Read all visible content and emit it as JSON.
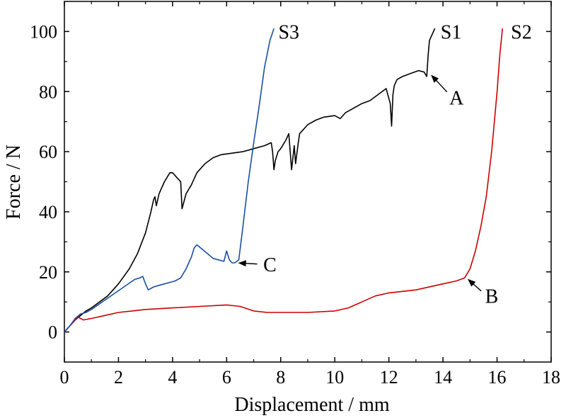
{
  "chart_data": {
    "type": "line",
    "xlabel": "Displacement / mm",
    "ylabel": "Force / N",
    "xlim": [
      0,
      18
    ],
    "ylim": [
      -10,
      110
    ],
    "xticks": [
      0,
      2,
      4,
      6,
      8,
      10,
      12,
      14,
      16,
      18
    ],
    "yticks": [
      0,
      20,
      40,
      60,
      80,
      100
    ],
    "grid": false,
    "series": [
      {
        "name": "S1",
        "color": "#000000",
        "x": [
          0,
          0.2,
          0.4,
          0.6,
          0.8,
          1.0,
          1.3,
          1.6,
          2.0,
          2.4,
          2.7,
          3.0,
          3.2,
          3.3,
          3.35,
          3.4,
          3.5,
          3.7,
          3.9,
          4.0,
          4.2,
          4.3,
          4.35,
          4.5,
          4.7,
          4.9,
          5.2,
          5.5,
          5.8,
          6.2,
          6.6,
          7.0,
          7.4,
          7.65,
          7.7,
          7.75,
          7.8,
          7.9,
          8.0,
          8.2,
          8.3,
          8.4,
          8.45,
          8.5,
          8.55,
          8.65,
          8.7,
          8.8,
          9.0,
          9.3,
          9.6,
          10.0,
          10.2,
          10.4,
          10.6,
          11.0,
          11.3,
          11.6,
          11.9,
          12.05,
          12.1,
          12.15,
          12.2,
          12.3,
          12.5,
          12.8,
          13.1,
          13.3,
          13.4,
          13.45,
          13.5,
          13.6,
          13.7
        ],
        "y": [
          0,
          2,
          4,
          5.5,
          7,
          8,
          10,
          12,
          16,
          21,
          26,
          33,
          40,
          44,
          45,
          42,
          46,
          50,
          53,
          53,
          51,
          50,
          41,
          46,
          49,
          53,
          56,
          58,
          59,
          59.5,
          60,
          61,
          62,
          63,
          60,
          54,
          57,
          60,
          61,
          64,
          66,
          54,
          58,
          62,
          56,
          63,
          66,
          67,
          69,
          70.5,
          71.5,
          72,
          71,
          73,
          74,
          76,
          77,
          79,
          81,
          76,
          68.5,
          79,
          82,
          84,
          85,
          86,
          87,
          86.5,
          85,
          92,
          97,
          99,
          101
        ]
      },
      {
        "name": "S2",
        "color": "#cc0000",
        "x": [
          0,
          0.2,
          0.4,
          0.5,
          0.7,
          1.0,
          1.5,
          2.0,
          2.5,
          3.0,
          4.0,
          5.0,
          6.0,
          6.5,
          7.0,
          7.5,
          8.0,
          9.0,
          10.0,
          10.5,
          11.0,
          11.5,
          12.0,
          13.0,
          14.0,
          14.5,
          14.8,
          15.0,
          15.2,
          15.4,
          15.6,
          15.8,
          16.0,
          16.1,
          16.2
        ],
        "y": [
          0,
          2,
          4,
          5,
          4,
          4.5,
          5.5,
          6.5,
          7,
          7.5,
          8,
          8.5,
          9,
          8.5,
          7,
          6.5,
          6.5,
          6.5,
          7,
          8,
          10,
          12,
          13,
          14,
          16,
          17,
          18,
          21,
          27,
          35,
          45,
          60,
          80,
          92,
          101
        ]
      },
      {
        "name": "S3",
        "color": "#1a4fa0",
        "x": [
          0,
          0.2,
          0.4,
          0.6,
          0.8,
          1.0,
          1.4,
          1.8,
          2.2,
          2.6,
          2.8,
          2.9,
          3.0,
          3.1,
          3.3,
          3.5,
          3.7,
          3.9,
          4.1,
          4.3,
          4.5,
          4.7,
          4.8,
          4.9,
          5.1,
          5.3,
          5.5,
          5.7,
          5.9,
          6.0,
          6.1,
          6.2,
          6.3,
          6.45,
          6.6,
          6.8,
          7.0,
          7.2,
          7.4,
          7.6,
          7.75
        ],
        "y": [
          0,
          2,
          4.5,
          6,
          6.5,
          7.5,
          10,
          12.5,
          15,
          17.5,
          18,
          18.5,
          16,
          14,
          15,
          15.5,
          16,
          16.5,
          17,
          18,
          21,
          25,
          28,
          29,
          27.5,
          26,
          24.5,
          24,
          23.5,
          27,
          24,
          23,
          23,
          24,
          35,
          50,
          63,
          75,
          88,
          97,
          101
        ]
      }
    ],
    "series_labels": [
      {
        "text": "S1",
        "x": 14.3,
        "y": 100
      },
      {
        "text": "S2",
        "x": 16.9,
        "y": 100
      },
      {
        "text": "S3",
        "x": 8.3,
        "y": 100
      }
    ],
    "annotations": [
      {
        "label": "A",
        "point_x": 13.5,
        "point_y": 86,
        "text_x": 14.5,
        "text_y": 78
      },
      {
        "label": "B",
        "point_x": 14.85,
        "point_y": 18,
        "text_x": 15.8,
        "text_y": 12
      },
      {
        "label": "C",
        "point_x": 6.35,
        "point_y": 23,
        "text_x": 7.6,
        "text_y": 22.5
      }
    ]
  }
}
